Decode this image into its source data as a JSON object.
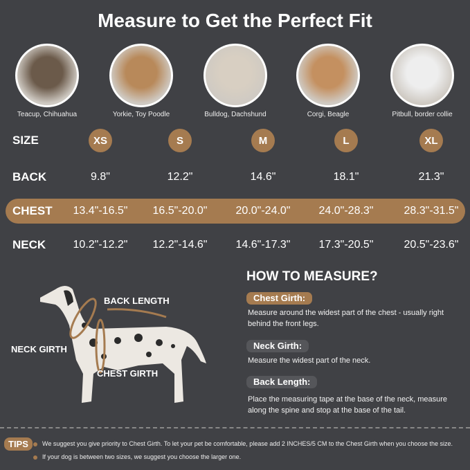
{
  "title": "Measure to Get the Perfect Fit",
  "breeds": [
    "Teacup, Chihuahua",
    "Yorkie, Toy Poodle",
    "Bulldog, Dachshund",
    "Corgi, Beagle",
    "Pitbull, border collie"
  ],
  "row_labels": {
    "size": "SIZE",
    "back": "BACK",
    "chest": "CHEST",
    "neck": "NECK"
  },
  "sizes": [
    "XS",
    "S",
    "M",
    "L",
    "XL"
  ],
  "back": [
    "9.8\"",
    "12.2\"",
    "14.6\"",
    "18.1\"",
    "21.3\""
  ],
  "chest": [
    "13.4\"-16.5\"",
    "16.5\"-20.0\"",
    "20.0\"-24.0\"",
    "24.0\"-28.3\"",
    "28.3\"-31.5\""
  ],
  "neck": [
    "10.2\"-12.2\"",
    "12.2\"-14.6\"",
    "14.6\"-17.3\"",
    "17.3\"-20.5\"",
    "20.5\"-23.6\""
  ],
  "diagram": {
    "back_length": "BACK LENGTH",
    "neck_girth": "NECK GIRTH",
    "chest_girth": "CHEST GIRTH"
  },
  "how_to": {
    "heading": "HOW TO MEASURE?",
    "chest_title": "Chest Girth:",
    "chest_desc": "Measure around the widest part of the chest - usually right behind the front legs.",
    "neck_title": "Neck Girth:",
    "neck_desc": "Measure the widest part of the neck.",
    "back_title": "Back Length:",
    "back_desc": "Place the measuring tape at the base of the neck, measure along the spine and stop at the base of the tail."
  },
  "tips": {
    "label": "TIPS",
    "items": [
      "We suggest you give priority to Chest Girth. To let your pet be comfortable, please add 2 INCHES/5 CM to the Chest Girth when you choose the size.",
      "If your dog is between two sizes, we suggest you choose the larger one."
    ]
  },
  "colors": {
    "background": "#404145",
    "accent": "#a57b50"
  }
}
